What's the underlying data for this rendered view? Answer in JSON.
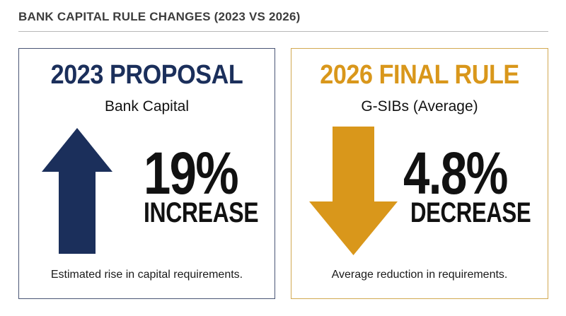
{
  "header": {
    "title": "BANK CAPITAL RULE CHANGES (2023 VS 2026)"
  },
  "colors": {
    "navy": "#1b2f5b",
    "gold": "#d9971b"
  },
  "cards": [
    {
      "title": "2023 PROPOSAL",
      "subtitle": "Bank Capital",
      "value": "19%",
      "change": "INCREASE",
      "caption": "Estimated rise in capital requirements.",
      "icon": "arrow-up-icon"
    },
    {
      "title": "2026 FINAL RULE",
      "subtitle": "G-SIBs (Average)",
      "value": "4.8%",
      "change": "DECREASE",
      "caption": "Average reduction in requirements.",
      "icon": "arrow-down-icon"
    }
  ]
}
